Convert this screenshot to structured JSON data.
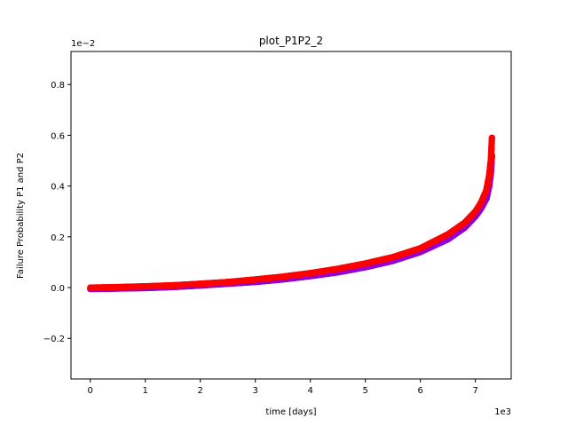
{
  "chart_data": {
    "type": "scatter",
    "title": "plot_P1P2_2",
    "xlabel": "time [days]",
    "ylabel": "Failure Probability P1 and P2",
    "x_offset_label": "1e3",
    "y_offset_label": "1e−2",
    "xlim": [
      -0.35,
      7.65
    ],
    "ylim": [
      -0.36,
      0.93
    ],
    "x_ticks": [
      0,
      1,
      2,
      3,
      4,
      5,
      6,
      7
    ],
    "x_tick_labels": [
      "0",
      "1",
      "2",
      "3",
      "4",
      "5",
      "6",
      "7"
    ],
    "y_ticks": [
      -0.2,
      0.0,
      0.2,
      0.4,
      0.6,
      0.8
    ],
    "y_tick_labels": [
      "−0.2",
      "0.0",
      "0.2",
      "0.4",
      "0.6",
      "0.8"
    ],
    "grid": false,
    "legend": "none",
    "series": [
      {
        "color": "#9400d3",
        "x": [
          0.0,
          0.5,
          1.0,
          1.5,
          2.0,
          2.5,
          3.0,
          3.5,
          4.0,
          4.5,
          5.0,
          5.5,
          6.0,
          6.5,
          6.8,
          7.0,
          7.1,
          7.2,
          7.25,
          7.28,
          7.3
        ],
        "y": [
          -0.006,
          -0.004,
          -0.002,
          0.002,
          0.008,
          0.015,
          0.022,
          0.032,
          0.045,
          0.06,
          0.08,
          0.105,
          0.14,
          0.19,
          0.235,
          0.28,
          0.31,
          0.35,
          0.4,
          0.45,
          0.52
        ]
      },
      {
        "color": "#ff0000",
        "x": [
          0.0,
          0.5,
          1.0,
          1.5,
          2.0,
          2.5,
          3.0,
          3.5,
          4.0,
          4.5,
          5.0,
          5.5,
          6.0,
          6.5,
          6.8,
          7.0,
          7.1,
          7.2,
          7.25,
          7.28,
          7.3
        ],
        "y": [
          0.0,
          0.002,
          0.005,
          0.009,
          0.015,
          0.022,
          0.032,
          0.043,
          0.057,
          0.074,
          0.095,
          0.12,
          0.155,
          0.21,
          0.255,
          0.3,
          0.335,
          0.385,
          0.44,
          0.5,
          0.59
        ]
      }
    ]
  }
}
